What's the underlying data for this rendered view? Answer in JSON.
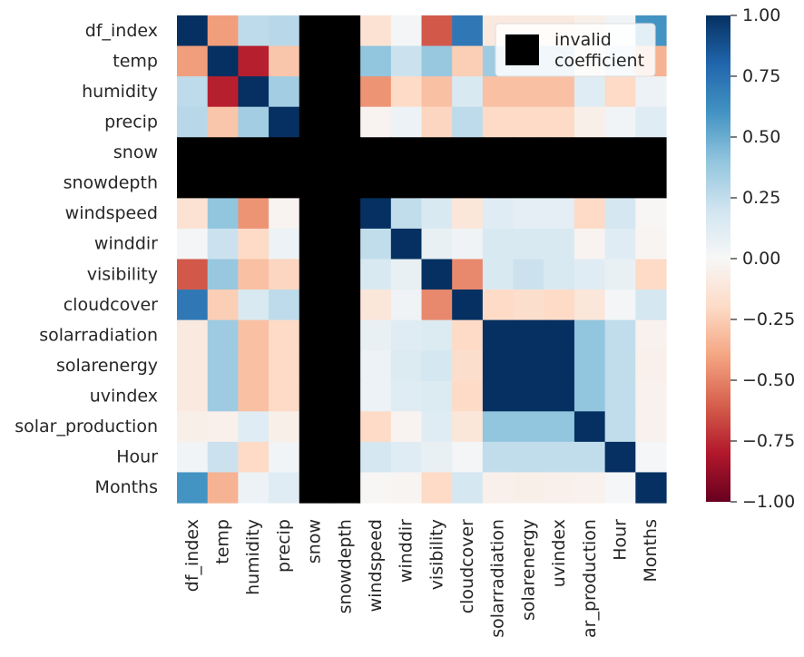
{
  "chart_data": {
    "type": "heatmap",
    "title": "",
    "xlabel": "",
    "ylabel": "",
    "x_labels": [
      "df_index",
      "temp",
      "humidity",
      "precip",
      "snow",
      "snowdepth",
      "windspeed",
      "winddir",
      "visibility",
      "cloudcover",
      "solarradiation",
      "solarenergy",
      "uvindex",
      "ar_production",
      "Hour",
      "Months"
    ],
    "y_labels": [
      "df_index",
      "temp",
      "humidity",
      "precip",
      "snow",
      "snowdepth",
      "windspeed",
      "winddir",
      "visibility",
      "cloudcover",
      "solarradiation",
      "solarenergy",
      "uvindex",
      "solar_production",
      "Hour",
      "Months"
    ],
    "colorscale": "RdBu",
    "vmin": -1.0,
    "vmax": 1.0,
    "colorbar_ticks": [
      "1.00",
      "0.75",
      "0.50",
      "0.25",
      "0.00",
      "−0.25",
      "−0.50",
      "−0.75",
      "−1.00"
    ],
    "colorbar_tick_values": [
      1.0,
      0.75,
      0.5,
      0.25,
      0.0,
      -0.25,
      -0.5,
      -0.75,
      -1.0
    ],
    "invalid_color": "#000000",
    "legend": {
      "label": "invalid\ncoefficient",
      "placement": "top-right"
    },
    "values": [
      [
        1.0,
        -0.42,
        0.26,
        0.28,
        null,
        null,
        -0.15,
        0.02,
        -0.62,
        0.72,
        -0.1,
        -0.1,
        -0.1,
        -0.06,
        0.03,
        0.6
      ],
      [
        -0.42,
        1.0,
        -0.78,
        -0.28,
        null,
        null,
        0.4,
        0.22,
        0.38,
        -0.25,
        0.36,
        0.36,
        0.36,
        -0.05,
        0.22,
        -0.35
      ],
      [
        0.26,
        -0.78,
        1.0,
        0.35,
        null,
        null,
        -0.45,
        -0.2,
        -0.3,
        0.16,
        -0.3,
        -0.3,
        -0.3,
        0.12,
        -0.2,
        0.06
      ],
      [
        0.28,
        -0.28,
        0.35,
        1.0,
        null,
        null,
        -0.03,
        0.06,
        -0.22,
        0.26,
        -0.2,
        -0.2,
        -0.2,
        -0.06,
        0.03,
        0.12
      ],
      [
        null,
        null,
        null,
        null,
        null,
        null,
        null,
        null,
        null,
        null,
        null,
        null,
        null,
        null,
        null,
        null
      ],
      [
        null,
        null,
        null,
        null,
        null,
        null,
        null,
        null,
        null,
        null,
        null,
        null,
        null,
        null,
        null,
        null
      ],
      [
        -0.15,
        0.4,
        -0.45,
        -0.03,
        null,
        null,
        1.0,
        0.25,
        0.16,
        -0.12,
        0.12,
        0.1,
        0.1,
        -0.2,
        0.18,
        -0.01
      ],
      [
        0.02,
        0.22,
        -0.2,
        0.06,
        null,
        null,
        0.25,
        1.0,
        0.08,
        0.04,
        0.16,
        0.16,
        0.16,
        -0.03,
        0.12,
        -0.02
      ],
      [
        -0.62,
        0.38,
        -0.3,
        -0.22,
        null,
        null,
        0.16,
        0.08,
        1.0,
        -0.48,
        0.16,
        0.22,
        0.16,
        0.12,
        0.08,
        -0.2
      ],
      [
        0.72,
        -0.25,
        0.16,
        0.26,
        null,
        null,
        -0.12,
        0.04,
        -0.48,
        1.0,
        -0.2,
        -0.18,
        -0.2,
        -0.12,
        0.02,
        0.18
      ],
      [
        -0.1,
        0.36,
        -0.3,
        -0.2,
        null,
        null,
        0.08,
        0.12,
        0.14,
        -0.2,
        1.0,
        1.0,
        1.0,
        0.4,
        0.25,
        -0.04
      ],
      [
        -0.1,
        0.36,
        -0.3,
        -0.2,
        null,
        null,
        0.06,
        0.14,
        0.18,
        -0.18,
        1.0,
        1.0,
        1.0,
        0.4,
        0.25,
        -0.05
      ],
      [
        -0.1,
        0.36,
        -0.3,
        -0.2,
        null,
        null,
        0.06,
        0.12,
        0.14,
        -0.2,
        1.0,
        1.0,
        1.0,
        0.4,
        0.25,
        -0.04
      ],
      [
        -0.06,
        -0.05,
        0.12,
        -0.06,
        null,
        null,
        -0.2,
        -0.03,
        0.12,
        -0.12,
        0.4,
        0.4,
        0.4,
        1.0,
        0.25,
        -0.04
      ],
      [
        0.03,
        0.22,
        -0.2,
        0.03,
        null,
        null,
        0.18,
        0.12,
        0.08,
        0.02,
        0.25,
        0.25,
        0.25,
        0.25,
        1.0,
        0.01
      ],
      [
        0.6,
        -0.35,
        0.06,
        0.12,
        null,
        null,
        -0.01,
        -0.02,
        -0.2,
        0.18,
        -0.05,
        -0.06,
        -0.05,
        -0.04,
        0.01,
        1.0
      ]
    ]
  }
}
